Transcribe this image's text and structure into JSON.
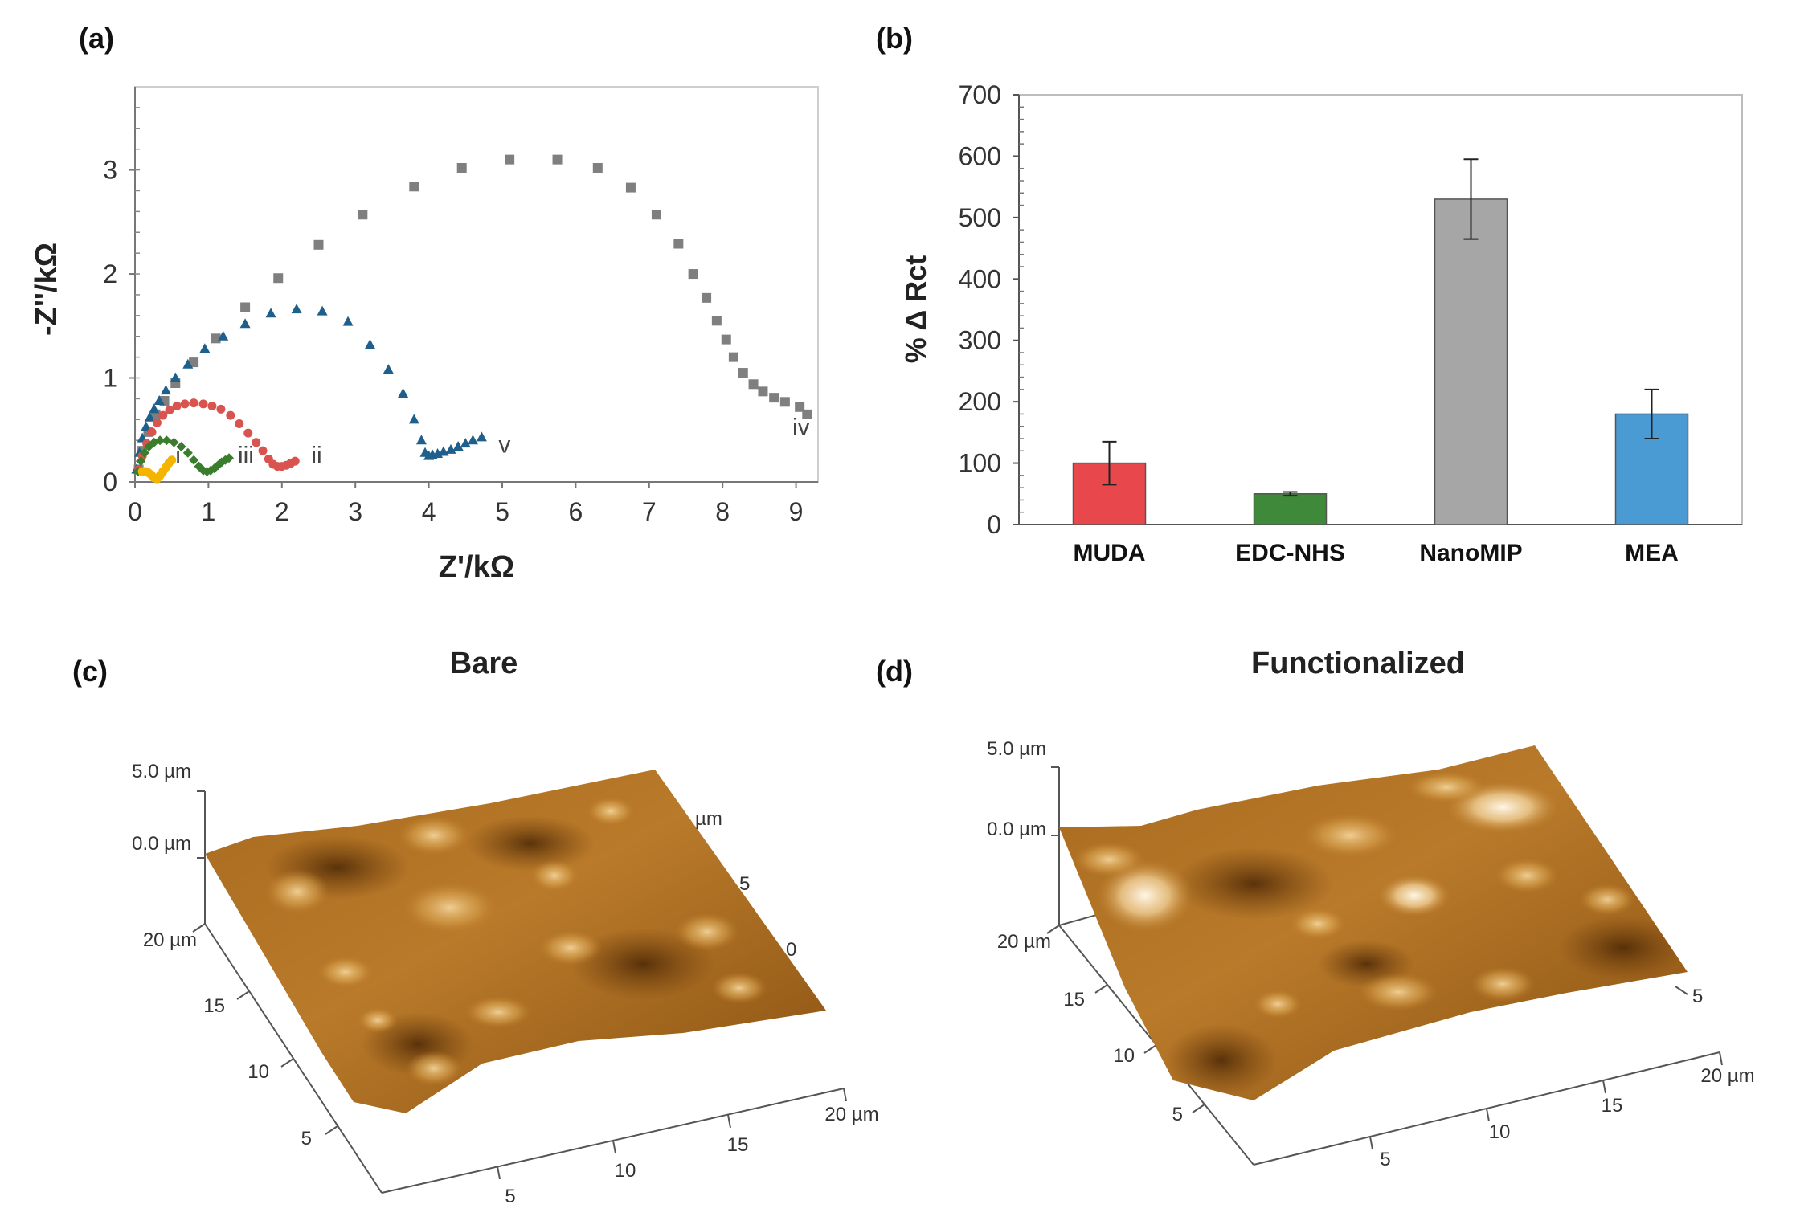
{
  "panels": {
    "a": "(a)",
    "b": "(b)",
    "c": "(c)",
    "d": "(d)"
  },
  "chart_data": [
    {
      "type": "scatter",
      "panel": "a",
      "xlabel": "Z'/kΩ",
      "ylabel": "-Z''/kΩ",
      "xlim": [
        0,
        9.3
      ],
      "ylim": [
        0,
        3.8
      ],
      "x_ticks": [
        "0",
        "1",
        "2",
        "3",
        "4",
        "5",
        "6",
        "7",
        "8",
        "9"
      ],
      "y_ticks": [
        "0",
        "1",
        "2",
        "3"
      ],
      "grid": false,
      "series": [
        {
          "name": "iv",
          "marker": "square",
          "color": "#7f7f7f",
          "x": [
            0.05,
            0.1,
            0.18,
            0.28,
            0.4,
            0.55,
            0.8,
            1.1,
            1.5,
            1.95,
            2.5,
            3.1,
            3.8,
            4.45,
            5.1,
            5.75,
            6.3,
            6.75,
            7.1,
            7.4,
            7.6,
            7.78,
            7.92,
            8.05,
            8.15,
            8.28,
            8.42,
            8.55,
            8.7,
            8.85,
            9.05,
            9.15
          ],
          "y": [
            0.12,
            0.3,
            0.48,
            0.65,
            0.78,
            0.95,
            1.15,
            1.38,
            1.68,
            1.96,
            2.28,
            2.57,
            2.84,
            3.02,
            3.1,
            3.1,
            3.02,
            2.83,
            2.57,
            2.29,
            2.0,
            1.77,
            1.55,
            1.37,
            1.2,
            1.05,
            0.94,
            0.87,
            0.81,
            0.77,
            0.72,
            0.65
          ]
        },
        {
          "name": "v",
          "marker": "triangle",
          "color": "#1f5f8b",
          "x": [
            0.02,
            0.06,
            0.1,
            0.15,
            0.2,
            0.26,
            0.33,
            0.42,
            0.55,
            0.72,
            0.95,
            1.2,
            1.5,
            1.85,
            2.2,
            2.55,
            2.9,
            3.2,
            3.45,
            3.65,
            3.8,
            3.9,
            3.95,
            4.0,
            4.05,
            4.12,
            4.2,
            4.3,
            4.4,
            4.5,
            4.6,
            4.72
          ],
          "y": [
            0.12,
            0.28,
            0.42,
            0.53,
            0.62,
            0.7,
            0.78,
            0.88,
            1.0,
            1.13,
            1.28,
            1.4,
            1.52,
            1.62,
            1.66,
            1.64,
            1.54,
            1.32,
            1.08,
            0.85,
            0.6,
            0.4,
            0.28,
            0.25,
            0.26,
            0.27,
            0.29,
            0.31,
            0.34,
            0.37,
            0.4,
            0.43
          ]
        },
        {
          "name": "ii",
          "marker": "circle",
          "color": "#d9534f",
          "x": [
            0.05,
            0.1,
            0.16,
            0.23,
            0.3,
            0.38,
            0.47,
            0.57,
            0.68,
            0.8,
            0.93,
            1.05,
            1.17,
            1.3,
            1.42,
            1.54,
            1.65,
            1.74,
            1.82,
            1.88,
            1.94,
            2.0,
            2.06,
            2.12,
            2.18
          ],
          "y": [
            0.12,
            0.25,
            0.37,
            0.48,
            0.57,
            0.64,
            0.69,
            0.73,
            0.75,
            0.76,
            0.75,
            0.73,
            0.7,
            0.64,
            0.56,
            0.47,
            0.38,
            0.3,
            0.22,
            0.17,
            0.15,
            0.15,
            0.16,
            0.18,
            0.2
          ]
        },
        {
          "name": "iii",
          "marker": "diamond",
          "color": "#3a7d2c",
          "x": [
            0.04,
            0.08,
            0.13,
            0.19,
            0.26,
            0.34,
            0.43,
            0.53,
            0.63,
            0.72,
            0.8,
            0.87,
            0.93,
            0.98,
            1.03,
            1.08,
            1.13,
            1.18,
            1.23,
            1.28
          ],
          "y": [
            0.1,
            0.2,
            0.28,
            0.34,
            0.38,
            0.4,
            0.4,
            0.38,
            0.34,
            0.28,
            0.21,
            0.15,
            0.11,
            0.1,
            0.11,
            0.13,
            0.16,
            0.19,
            0.21,
            0.23
          ]
        },
        {
          "name": "i",
          "marker": "circle",
          "color": "#f4b400",
          "x": [
            0.1,
            0.14,
            0.18,
            0.22,
            0.26,
            0.3,
            0.34,
            0.38,
            0.42,
            0.46,
            0.5
          ],
          "y": [
            0.1,
            0.1,
            0.09,
            0.07,
            0.04,
            0.03,
            0.06,
            0.1,
            0.14,
            0.18,
            0.21
          ]
        }
      ],
      "annotations": [
        {
          "text": "i",
          "x": 0.55,
          "y": 0.18
        },
        {
          "text": "iii",
          "x": 1.4,
          "y": 0.18
        },
        {
          "text": "ii",
          "x": 2.4,
          "y": 0.18
        },
        {
          "text": "v",
          "x": 4.95,
          "y": 0.28
        },
        {
          "text": "iv",
          "x": 8.95,
          "y": 0.45
        }
      ]
    },
    {
      "type": "bar",
      "panel": "b",
      "categories": [
        "MUDA",
        "EDC-NHS",
        "NanoMIP",
        "MEA"
      ],
      "values": [
        100,
        50,
        530,
        180
      ],
      "errors": [
        35,
        3,
        65,
        40
      ],
      "colors": [
        "#e8474c",
        "#3f8a3a",
        "#a6a6a6",
        "#4a9bd4"
      ],
      "ylabel": "% Δ Rct",
      "ylim": [
        0,
        700
      ],
      "y_ticks": [
        "0",
        "100",
        "200",
        "300",
        "400",
        "500",
        "600",
        "700"
      ],
      "grid": false
    }
  ],
  "afm": [
    {
      "panel": "c",
      "title": "Bare",
      "z_labels": [
        "5.0 µm",
        "0.0 µm"
      ],
      "left_axis": [
        "20 µm",
        "15",
        "10",
        "5"
      ],
      "bottom_axis": [
        "5",
        "10",
        "15",
        "20 µm"
      ],
      "right_axis": [
        "µm",
        "5",
        "0"
      ]
    },
    {
      "panel": "d",
      "title": "Functionalized",
      "z_labels": [
        "5.0 µm",
        "0.0 µm"
      ],
      "left_axis": [
        "20 µm",
        "15",
        "10",
        "5"
      ],
      "bottom_axis": [
        "5",
        "10",
        "15",
        "20 µm"
      ],
      "right_axis": [
        "5"
      ]
    }
  ]
}
